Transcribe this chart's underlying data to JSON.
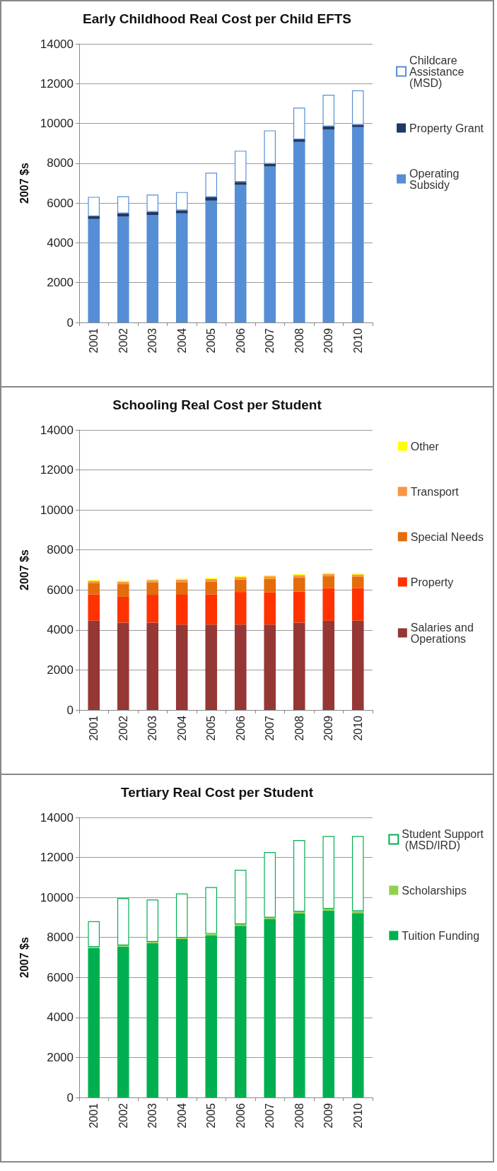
{
  "chart_data": [
    {
      "type": "bar",
      "title": "Early Childhood Real Cost per Child EFTS",
      "ylabel": "2007 $s",
      "categories": [
        "2001",
        "2002",
        "2003",
        "2004",
        "2005",
        "2006",
        "2007",
        "2008",
        "2009",
        "2010"
      ],
      "stacked": true,
      "ylim": [
        0,
        14000
      ],
      "yticks": [
        0,
        2000,
        4000,
        6000,
        8000,
        10000,
        12000,
        14000
      ],
      "grid": "y",
      "legend": "right",
      "series": [
        {
          "name": "Operating Subsidy",
          "color": "#558ed5",
          "values": [
            5200,
            5320,
            5400,
            5480,
            6120,
            6910,
            7840,
            9070,
            9700,
            9820
          ]
        },
        {
          "name": "Property Grant",
          "color": "#1f3864",
          "values": [
            130,
            160,
            150,
            150,
            180,
            150,
            130,
            130,
            150,
            110
          ]
        },
        {
          "name": "Childcare Assistance (MSD)",
          "color": "#ffffff",
          "values": [
            980,
            860,
            870,
            920,
            1220,
            1570,
            1680,
            1590,
            1590,
            1730
          ]
        }
      ]
    },
    {
      "type": "bar",
      "title": "Schooling Real Cost per Student",
      "ylabel": "2007 $s",
      "categories": [
        "2001",
        "2002",
        "2003",
        "2004",
        "2005",
        "2006",
        "2007",
        "2008",
        "2009",
        "2010"
      ],
      "stacked": true,
      "ylim": [
        0,
        14000
      ],
      "yticks": [
        0,
        2000,
        4000,
        6000,
        8000,
        10000,
        12000,
        14000
      ],
      "grid": "y",
      "legend": "right",
      "series": [
        {
          "name": "Salaries and Operations",
          "color": "#953735",
          "values": [
            4460,
            4370,
            4370,
            4270,
            4270,
            4270,
            4270,
            4370,
            4460,
            4460
          ]
        },
        {
          "name": "Property",
          "color": "#ff3300",
          "values": [
            1320,
            1290,
            1390,
            1490,
            1510,
            1630,
            1620,
            1550,
            1630,
            1630
          ]
        },
        {
          "name": "Special Needs",
          "color": "#e46c0a",
          "values": [
            550,
            630,
            610,
            630,
            640,
            620,
            670,
            700,
            590,
            560
          ]
        },
        {
          "name": "Transport",
          "color": "#f79646",
          "values": [
            120,
            120,
            120,
            120,
            120,
            120,
            120,
            120,
            120,
            120
          ]
        },
        {
          "name": "Other",
          "color": "#ffff00",
          "values": [
            50,
            50,
            50,
            50,
            50,
            50,
            50,
            50,
            50,
            50
          ]
        }
      ]
    },
    {
      "type": "bar",
      "title": "Tertiary Real Cost per Student",
      "ylabel": "2007 $s",
      "categories": [
        "2001",
        "2002",
        "2003",
        "2004",
        "2005",
        "2006",
        "2007",
        "2008",
        "2009",
        "2010"
      ],
      "stacked": true,
      "ylim": [
        0,
        14000
      ],
      "yticks": [
        0,
        2000,
        4000,
        6000,
        8000,
        10000,
        12000,
        14000
      ],
      "grid": "y",
      "legend": "right",
      "series": [
        {
          "name": "Tuition Funding",
          "color": "#00b050",
          "values": [
            7470,
            7540,
            7720,
            7920,
            8100,
            8580,
            8910,
            9190,
            9330,
            9220
          ]
        },
        {
          "name": "Scholarships",
          "color": "#92d050",
          "values": [
            50,
            60,
            60,
            60,
            80,
            80,
            80,
            100,
            100,
            100
          ]
        },
        {
          "name": "Student Support (MSD/IRD)",
          "color": "#ffffff",
          "values": [
            1290,
            2370,
            2120,
            2220,
            2340,
            2720,
            3280,
            3580,
            3640,
            3750
          ]
        }
      ]
    }
  ]
}
